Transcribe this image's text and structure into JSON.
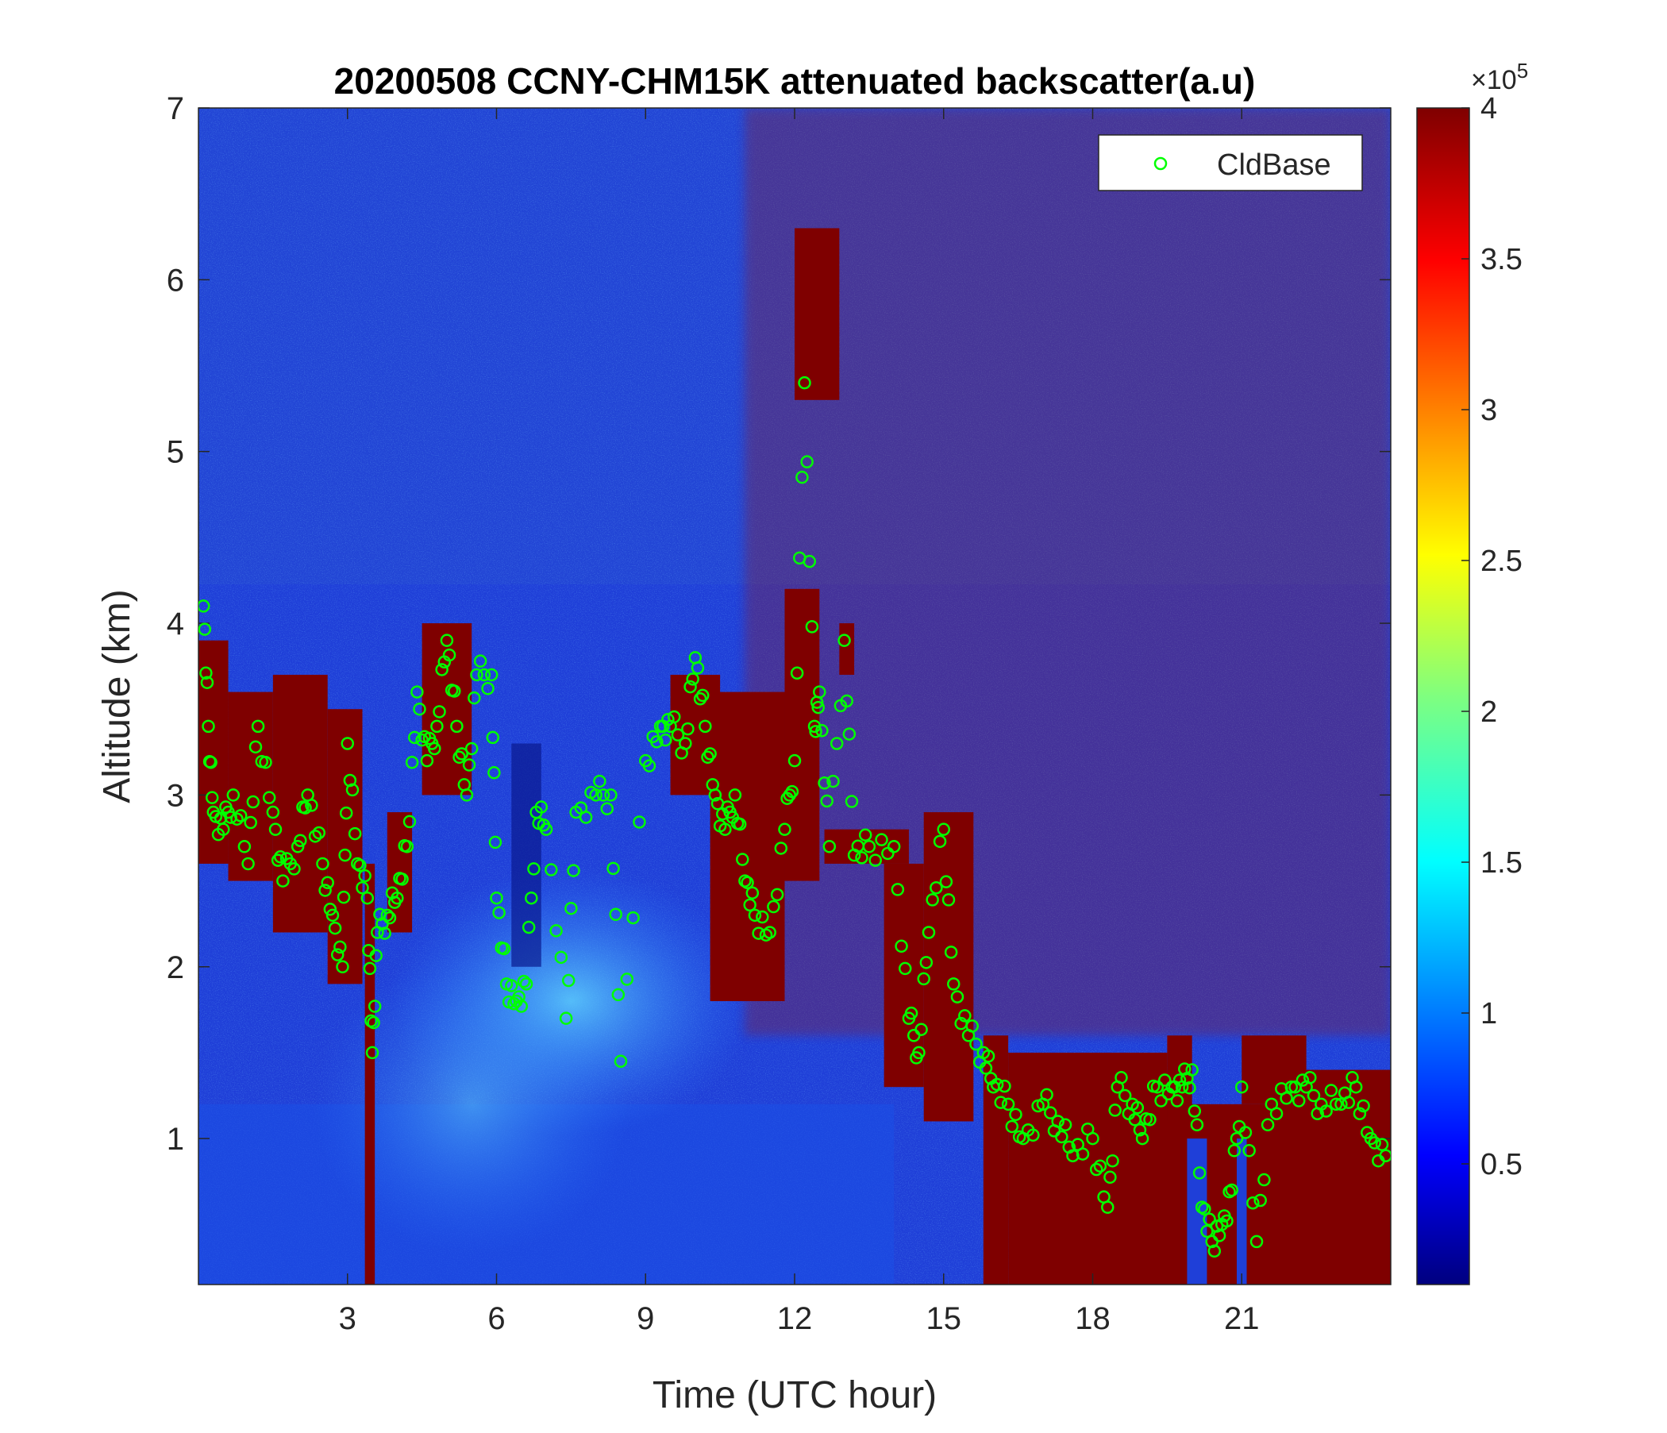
{
  "chart_data": {
    "type": "heatmap",
    "title": "20200508 CCNY-CHM15K attenuated backscatter(a.u)",
    "xlabel": "Time (UTC hour)",
    "ylabel": "Altitude (km)",
    "xlim": [
      0,
      24
    ],
    "ylim": [
      0.15,
      7
    ],
    "xticks": [
      3,
      6,
      9,
      12,
      15,
      18,
      21
    ],
    "yticks": [
      1,
      2,
      3,
      4,
      5,
      6,
      7
    ],
    "colorbar": {
      "colormap": "jet",
      "range": [
        0.1,
        4
      ],
      "ticks": [
        0.5,
        1,
        1.5,
        2,
        2.5,
        3,
        3.5,
        4
      ],
      "exponent_label": "×10",
      "exponent": "5"
    },
    "legend": {
      "position": "top-right",
      "entries": [
        "CldBase"
      ]
    },
    "series": [
      {
        "name": "CldBase",
        "marker": "circle",
        "color": "#00ff00",
        "x": [
          0.1,
          0.2,
          0.3,
          0.5,
          0.7,
          1.0,
          1.2,
          1.5,
          1.7,
          2.0,
          2.2,
          2.5,
          2.7,
          2.9,
          3.0,
          3.2,
          3.4,
          3.5,
          3.6,
          3.8,
          4.0,
          4.2,
          4.4,
          4.6,
          4.8,
          5.0,
          5.2,
          5.4,
          5.6,
          5.9,
          6.0,
          6.2,
          6.4,
          6.6,
          6.8,
          7.0,
          7.4,
          7.6,
          8.0,
          8.3,
          8.5,
          9.0,
          9.3,
          9.5,
          9.8,
          10.0,
          10.2,
          10.4,
          10.6,
          10.8,
          11.0,
          11.2,
          11.5,
          11.8,
          12.0,
          12.2,
          12.4,
          12.5,
          12.7,
          13.0,
          13.2,
          13.5,
          14.0,
          14.3,
          14.5,
          14.7,
          15.0,
          15.2,
          15.5,
          15.8,
          16.0,
          16.3,
          16.6,
          17.0,
          17.3,
          17.6,
          18.0,
          18.3,
          18.5,
          18.8,
          19.0,
          19.3,
          19.6,
          19.8,
          20.0,
          20.2,
          20.4,
          20.6,
          20.8,
          21.0,
          21.3,
          21.6,
          22.0,
          22.3,
          22.6,
          23.0,
          23.3,
          23.6,
          23.9
        ],
        "y": [
          4.1,
          3.4,
          2.9,
          2.8,
          3.0,
          2.6,
          3.4,
          2.9,
          2.5,
          2.7,
          3.0,
          2.6,
          2.3,
          2.0,
          3.3,
          2.6,
          2.4,
          1.5,
          2.2,
          2.3,
          2.4,
          2.7,
          3.6,
          3.2,
          3.4,
          3.9,
          3.4,
          3.0,
          3.7,
          3.7,
          2.4,
          1.9,
          1.8,
          1.9,
          2.9,
          2.8,
          1.7,
          2.9,
          3.0,
          3.0,
          1.45,
          3.2,
          3.4,
          3.4,
          3.3,
          3.8,
          3.4,
          3.0,
          2.8,
          3.0,
          2.5,
          2.3,
          2.2,
          2.8,
          3.2,
          5.4,
          3.4,
          3.6,
          2.7,
          3.9,
          2.65,
          2.7,
          2.7,
          1.7,
          1.5,
          2.2,
          2.8,
          1.9,
          1.6,
          1.5,
          1.3,
          1.2,
          1.0,
          1.2,
          1.1,
          0.9,
          1.0,
          0.6,
          1.3,
          1.2,
          1.0,
          1.3,
          1.3,
          1.3,
          1.4,
          0.6,
          0.4,
          0.5,
          0.7,
          1.3,
          0.4,
          1.2,
          1.3,
          1.3,
          1.2,
          1.2,
          1.3,
          1.0,
          0.9
        ]
      }
    ]
  }
}
